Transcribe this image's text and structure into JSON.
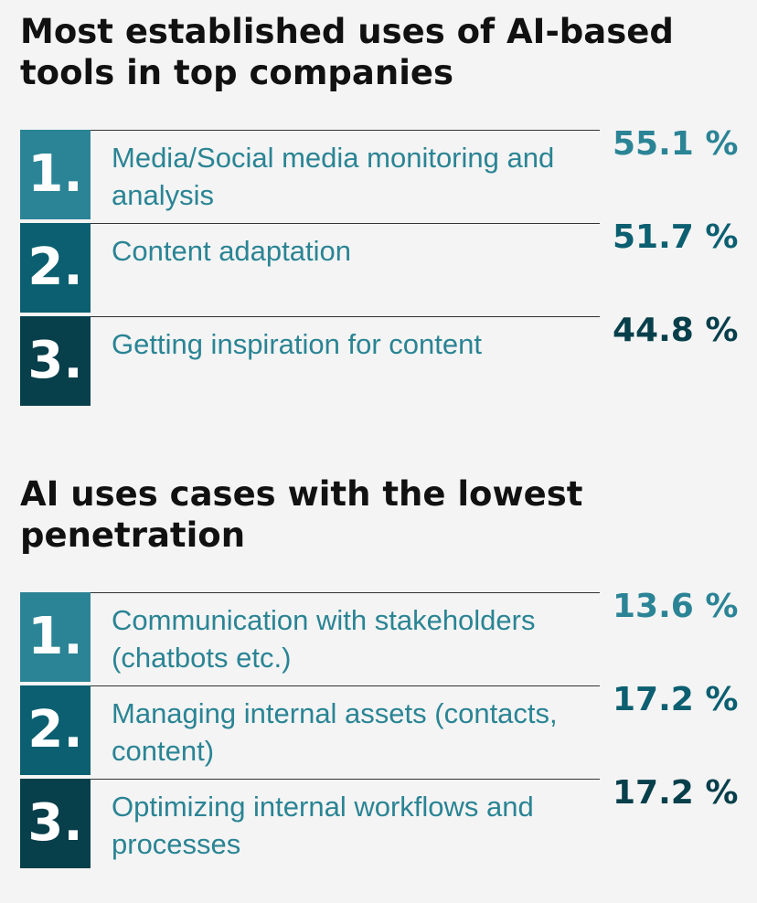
{
  "chart_data": [
    {
      "type": "table",
      "title": "Most established uses of AI-based tools in top companies",
      "columns": [
        "rank",
        "use_case",
        "share"
      ],
      "rows": [
        {
          "rank": "1.",
          "label": "Media/Social media monitoring and analysis",
          "value": 55.1,
          "display": "55.1 %"
        },
        {
          "rank": "2.",
          "label": "Content adaptation",
          "value": 51.7,
          "display": "51.7 %"
        },
        {
          "rank": "3.",
          "label": "Getting inspiration for content",
          "value": 44.8,
          "display": "44.8 %"
        }
      ]
    },
    {
      "type": "table",
      "title": "AI uses cases with the lowest penetration",
      "columns": [
        "rank",
        "use_case",
        "share"
      ],
      "rows": [
        {
          "rank": "1.",
          "label": "Communication with stakeholders (chatbots etc.)",
          "value": 13.6,
          "display": "13.6 %"
        },
        {
          "rank": "2.",
          "label": "Managing internal assets (contacts, content)",
          "value": 17.2,
          "display": "17.2 %"
        },
        {
          "rank": "3.",
          "label": "Optimizing internal workflows and processes",
          "value": 17.2,
          "display": "17.2 %"
        }
      ]
    }
  ],
  "colors": {
    "rank_1": "#2b8496",
    "rank_2": "#0b5f70",
    "rank_3": "#073f4b",
    "label_text": "#2a8494",
    "heading_text": "#111111",
    "background": "#f4f4f4"
  }
}
